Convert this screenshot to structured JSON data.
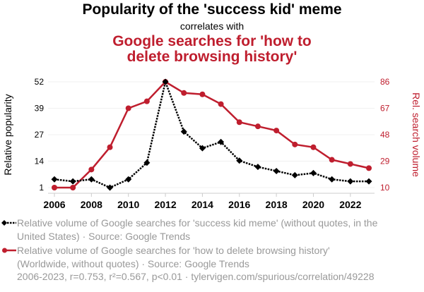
{
  "title": "Popularity of the 'success kid' meme",
  "subtitle": "correlates with",
  "title2": "Google searches for 'how to delete browsing history'",
  "legend": [
    "Relative volume of Google searches for 'success kid meme' (without quotes, in the United States) · Source: Google Trends",
    "Relative volume of Google searches for 'how to delete browsing history' (Worldwide, without quotes) · Source: Google Trends"
  ],
  "footer": "2006-2023, r=0.753, r²=0.567, p<0.01 · tylervigen.com/spurious/correlation/49228",
  "colors": {
    "series1": "#000000",
    "series2": "#bf1e2e"
  },
  "chart_data": {
    "type": "line",
    "x": [
      2006,
      2007,
      2008,
      2009,
      2010,
      2011,
      2012,
      2013,
      2014,
      2015,
      2016,
      2017,
      2018,
      2019,
      2020,
      2021,
      2022,
      2023
    ],
    "xticks": [
      "2006",
      "2008",
      "2010",
      "2012",
      "2014",
      "2016",
      "2018",
      "2020",
      "2022"
    ],
    "ylabel": "Relative popularity",
    "ylabel_right": "Rel. search volume",
    "yticks_left": [
      "1",
      "14",
      "27",
      "39",
      "52"
    ],
    "yticks_right": [
      "10",
      "29",
      "48",
      "67",
      "86"
    ],
    "ylim_left": [
      1,
      52
    ],
    "ylim_right": [
      10,
      86
    ],
    "grid": true,
    "series": [
      {
        "name": "Popularity of the 'success kid' meme",
        "axis": "left",
        "style": "dotted-diamond",
        "values": [
          5,
          4,
          5,
          1,
          5,
          13,
          52,
          28,
          20,
          23,
          14,
          11,
          9,
          7,
          8,
          5,
          4,
          4
        ]
      },
      {
        "name": "Google searches for 'how to delete browsing history'",
        "axis": "right",
        "style": "solid-circle",
        "values": [
          10,
          10,
          23,
          39,
          67,
          72,
          86,
          78,
          77,
          70,
          57,
          54,
          51,
          41,
          39,
          30,
          27,
          24
        ]
      }
    ]
  }
}
